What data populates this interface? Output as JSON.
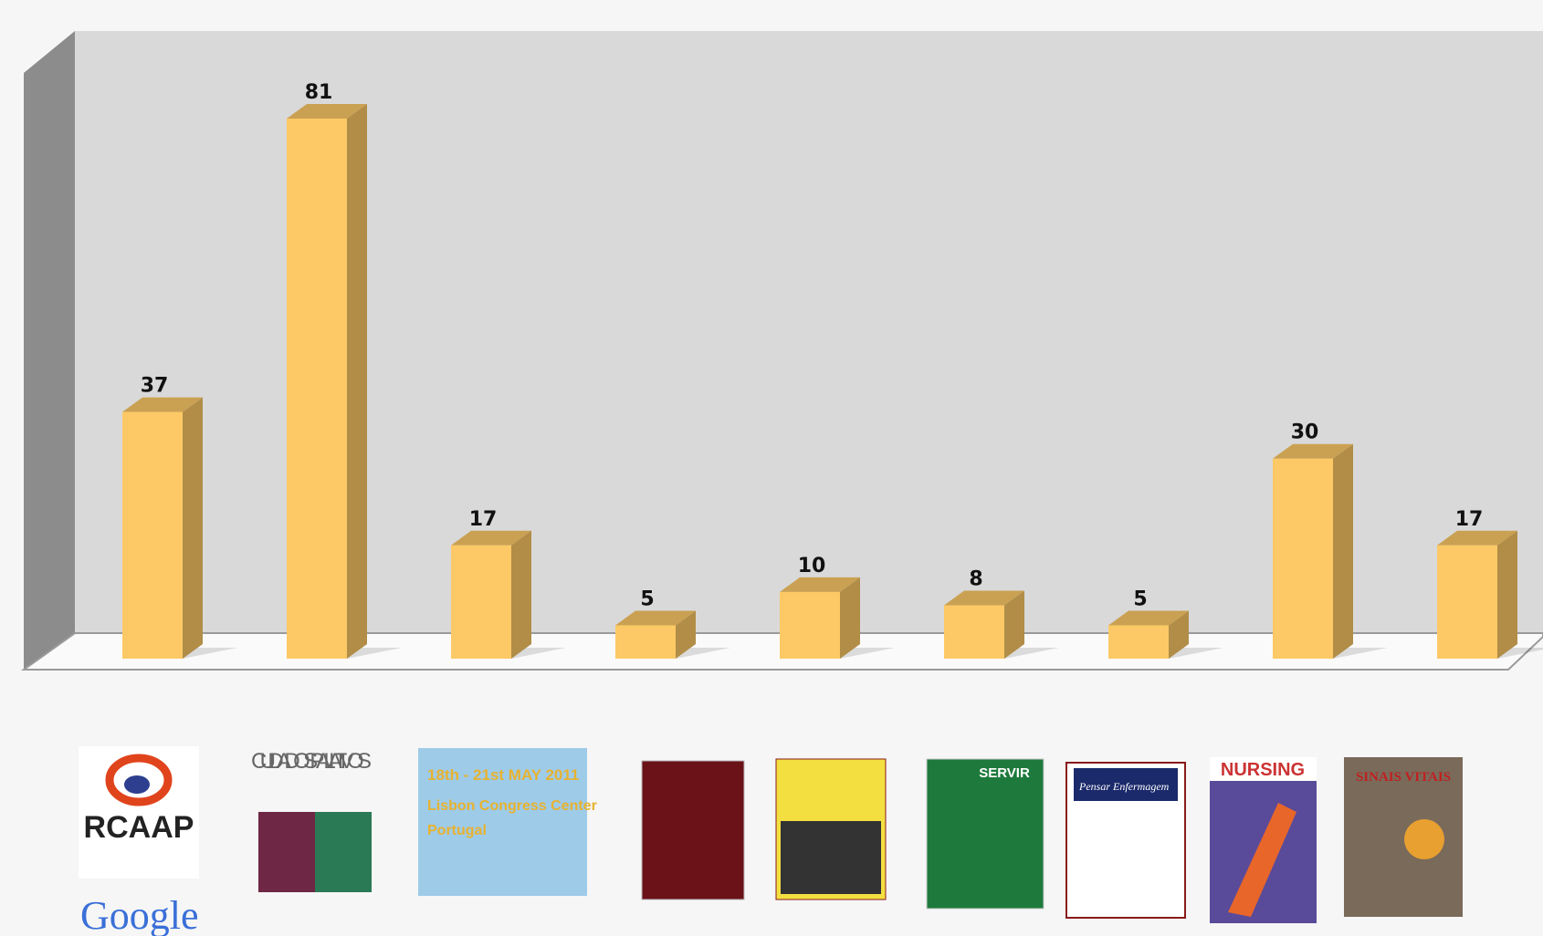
{
  "chart_data": {
    "type": "bar",
    "categories": [
      null,
      null,
      null,
      null,
      null,
      null,
      null,
      null,
      null
    ],
    "values": [
      37,
      81,
      17,
      5,
      10,
      8,
      5,
      30,
      17
    ],
    "color": "#fdc966"
  },
  "logos": [
    "RCAAP",
    "Google",
    "CUIDADOS PALIATIVOS",
    "18th - 21st MAY 2011",
    "Lisbon Congress Center",
    "Portugal",
    "SERVIR",
    "Pensar Enfermagem",
    "NURSING",
    "SINAIS VITAIS"
  ]
}
